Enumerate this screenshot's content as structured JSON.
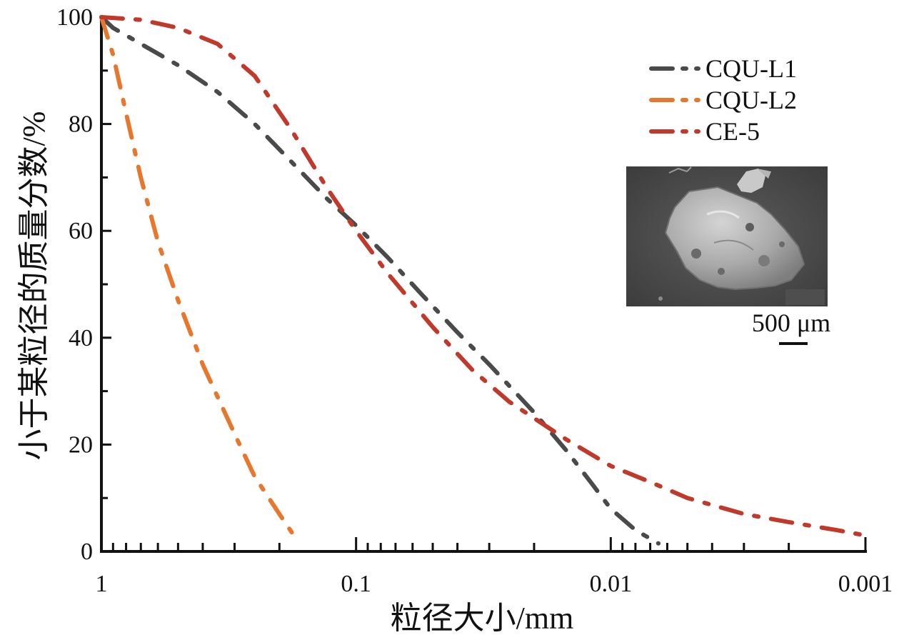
{
  "chart_data": {
    "type": "line",
    "xlabel": "粒径大小/mm",
    "ylabel": "小于某粒径的质量分数/%",
    "x_scale": "log",
    "x_reversed": true,
    "xlim": [
      1,
      0.001
    ],
    "ylim": [
      0,
      100
    ],
    "x_ticks": [
      "1",
      "0.1",
      "0.01",
      "0.001"
    ],
    "y_ticks": [
      "0",
      "20",
      "40",
      "60",
      "80",
      "100"
    ],
    "legend_position": "top-right",
    "series": [
      {
        "name": "CQU-L1",
        "color": "#4a4a4a",
        "x": [
          1,
          0.9,
          0.7,
          0.5,
          0.35,
          0.25,
          0.18,
          0.13,
          0.1,
          0.075,
          0.055,
          0.04,
          0.03,
          0.02,
          0.015,
          0.012,
          0.01,
          0.008,
          0.0065
        ],
        "y": [
          100,
          98,
          95,
          91,
          86,
          80,
          73,
          66,
          61,
          55,
          48,
          41,
          35,
          26,
          19,
          13,
          8,
          4,
          1.5
        ]
      },
      {
        "name": "CQU-L2",
        "color": "#e8772e",
        "x": [
          1,
          0.9,
          0.8,
          0.7,
          0.6,
          0.5,
          0.4,
          0.3,
          0.25,
          0.2,
          0.17
        ],
        "y": [
          100,
          93,
          82,
          70,
          58,
          47,
          35,
          22,
          14,
          7,
          2
        ]
      },
      {
        "name": "CE-5",
        "color": "#c0392b",
        "x": [
          1,
          0.7,
          0.5,
          0.35,
          0.25,
          0.18,
          0.13,
          0.1,
          0.075,
          0.05,
          0.035,
          0.025,
          0.015,
          0.01,
          0.007,
          0.005,
          0.003,
          0.002,
          0.0013,
          0.001
        ],
        "y": [
          100,
          99.5,
          98,
          95,
          89,
          79,
          68,
          60,
          52,
          42,
          34,
          28,
          21,
          16,
          13,
          10,
          7,
          5.5,
          4,
          3
        ]
      }
    ],
    "inset": {
      "scale_bar_label": "500 μm"
    }
  }
}
